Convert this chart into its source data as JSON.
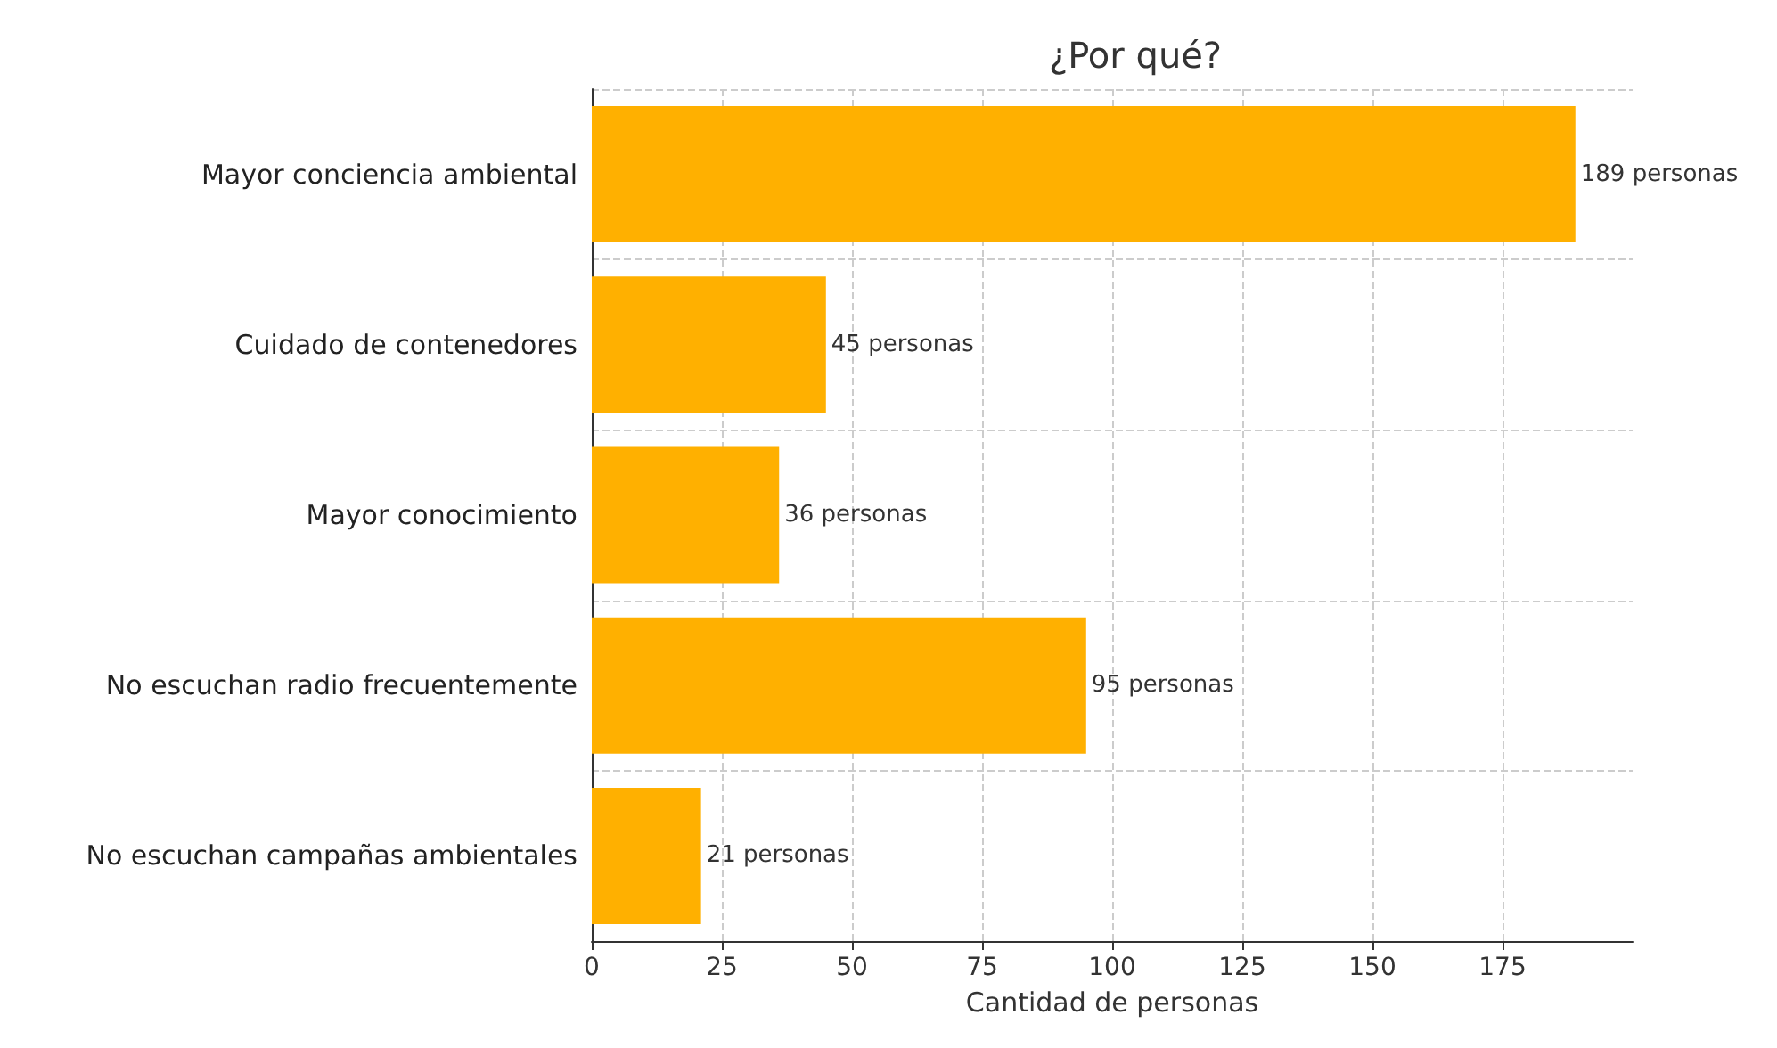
{
  "chart_data": {
    "type": "bar",
    "orientation": "horizontal",
    "title": "¿Por qué?",
    "xlabel": "Cantidad de personas",
    "categories": [
      "Mayor conciencia ambiental",
      "Cuidado de contenedores",
      "Mayor conocimiento",
      "No escuchan radio frecuentemente",
      "No escuchan campañas ambientales"
    ],
    "values": [
      189,
      45,
      36,
      95,
      21
    ],
    "value_labels": [
      "189 personas",
      "45 personas",
      "36 personas",
      "95 personas",
      "21 personas"
    ],
    "color": "#ffb000",
    "xlim": [
      0,
      200
    ],
    "xticks": [
      0,
      25,
      50,
      75,
      100,
      125,
      150,
      175
    ],
    "grid": true
  }
}
